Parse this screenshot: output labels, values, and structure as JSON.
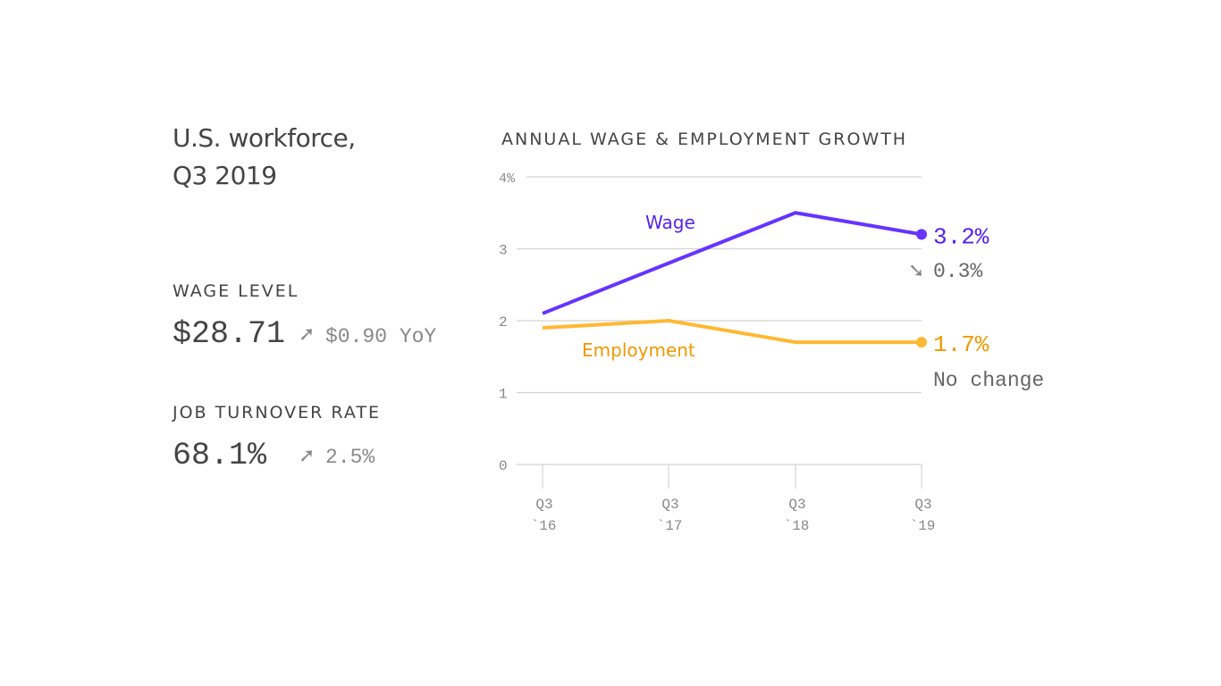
{
  "title_line1": "U.S. workforce,",
  "title_line2": "Q3 2019",
  "stats": [
    {
      "label": "WAGE LEVEL",
      "value": "$28.71",
      "change": "$0.90 YoY",
      "direction": "up",
      "icon": "arrow-up-right-icon"
    },
    {
      "label": "JOB TURNOVER RATE",
      "value": "68.1%",
      "change": "2.5%",
      "direction": "up",
      "icon": "arrow-up-right-icon"
    }
  ],
  "chart_data": {
    "type": "line",
    "title": "ANNUAL WAGE & EMPLOYMENT GROWTH",
    "categories": [
      "Q3 `16",
      "Q3 `17",
      "Q3 `18",
      "Q3 `19"
    ],
    "category_lines": [
      [
        "Q3",
        "`16"
      ],
      [
        "Q3",
        "`17"
      ],
      [
        "Q3",
        "`18"
      ],
      [
        "Q3",
        "`19"
      ]
    ],
    "ylim": [
      0,
      4
    ],
    "yticks": [
      "0",
      "1",
      "2",
      "3",
      "4%"
    ],
    "grid": true,
    "series": [
      {
        "name": "Wage",
        "color": "#6633ff",
        "label_color": "#5522ee",
        "values": [
          2.1,
          2.8,
          3.5,
          3.2
        ],
        "end_label": "3.2%",
        "change": "0.3%",
        "change_direction": "down"
      },
      {
        "name": "Employment",
        "color": "#ffb833",
        "label_color": "#ee9900",
        "values": [
          1.9,
          2.0,
          1.7,
          1.7
        ],
        "end_label": "1.7%",
        "change": "No change"
      }
    ]
  }
}
